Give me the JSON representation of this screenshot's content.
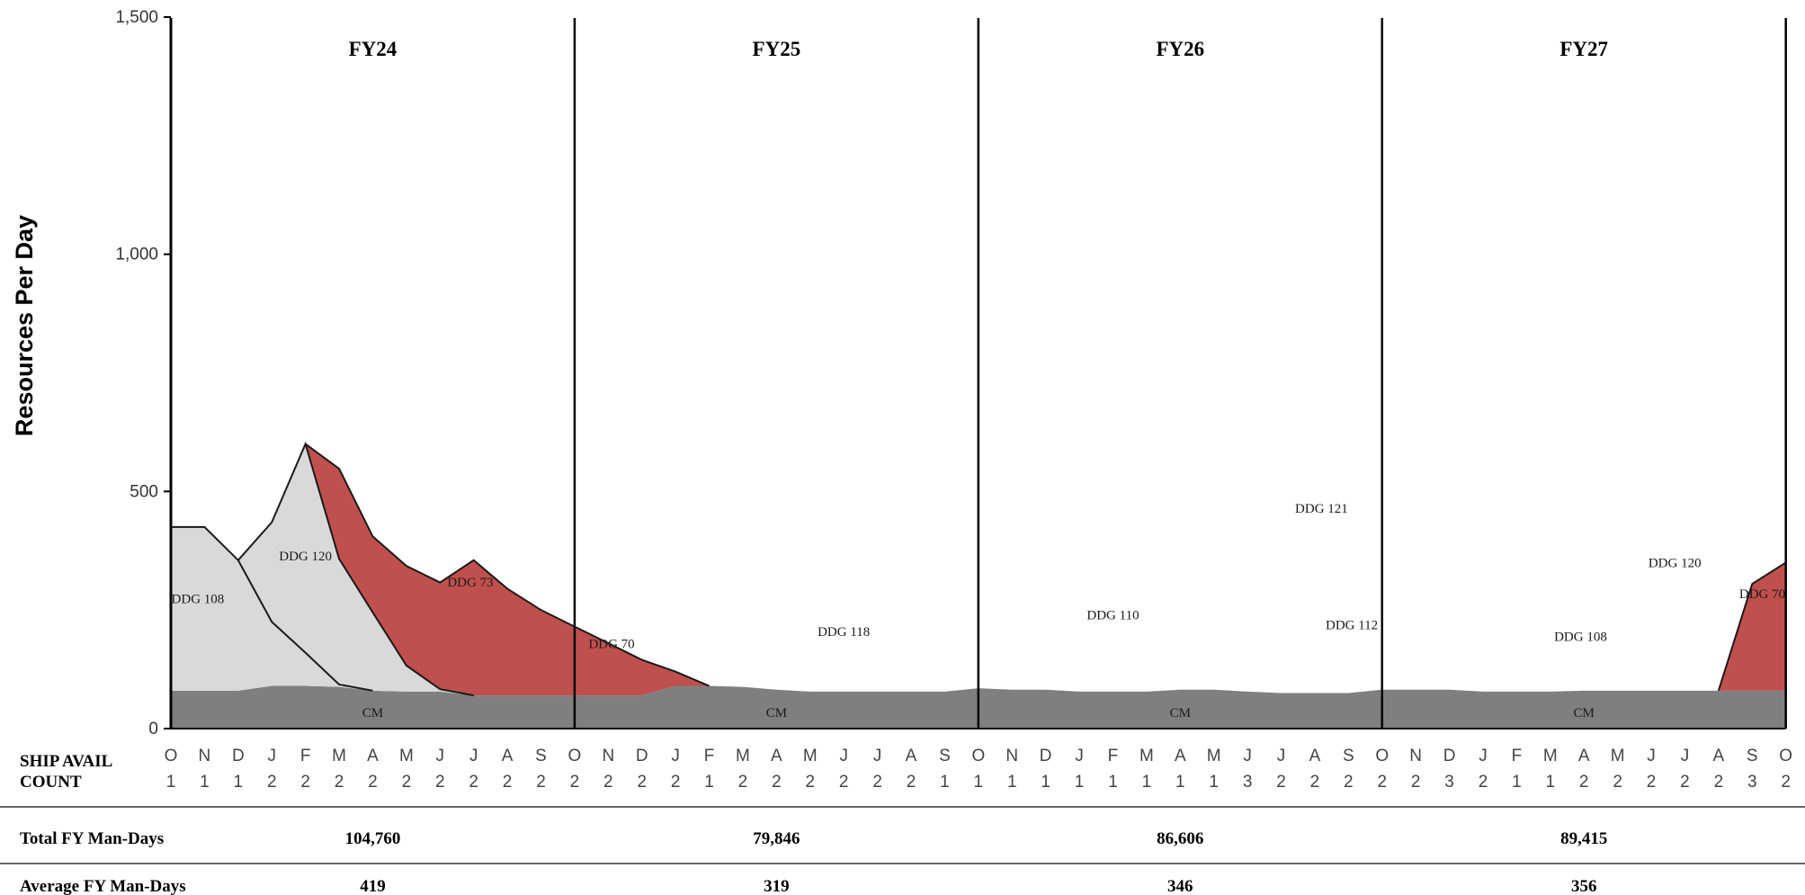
{
  "chart_data": {
    "type": "area",
    "ylabel": "Resources Per Day",
    "ylim": [
      0,
      1500
    ],
    "yticks": [
      {
        "value": 0,
        "label": "0"
      },
      {
        "value": 500,
        "label": "500"
      },
      {
        "value": 1000,
        "label": "1,000"
      },
      {
        "value": 1500,
        "label": "1,500"
      }
    ],
    "months": [
      "O",
      "N",
      "D",
      "J",
      "F",
      "M",
      "A",
      "M",
      "J",
      "J",
      "A",
      "S",
      "O",
      "N",
      "D",
      "J",
      "F",
      "M",
      "A",
      "M",
      "J",
      "J",
      "A",
      "S",
      "O",
      "N",
      "D",
      "J",
      "F",
      "M",
      "A",
      "M",
      "J",
      "J",
      "A",
      "S",
      "O",
      "N",
      "D",
      "J",
      "F",
      "M",
      "A",
      "M",
      "J",
      "J",
      "A",
      "S",
      "O"
    ],
    "ship_avail_count": [
      "1",
      "1",
      "1",
      "2",
      "2",
      "2",
      "2",
      "2",
      "2",
      "2",
      "2",
      "2",
      "2",
      "2",
      "2",
      "2",
      "1",
      "2",
      "2",
      "2",
      "2",
      "2",
      "2",
      "1",
      "1",
      "1",
      "1",
      "1",
      "1",
      "1",
      "1",
      "1",
      "3",
      "2",
      "2",
      "2",
      "2",
      "2",
      "3",
      "2",
      "1",
      "1",
      "2",
      "2",
      "2",
      "2",
      "2",
      "3",
      "2"
    ],
    "fiscal_years": [
      {
        "label": "FY24",
        "total": "104,760",
        "average": "419"
      },
      {
        "label": "FY25",
        "total": "79,846",
        "average": "319"
      },
      {
        "label": "FY26",
        "total": "86,606",
        "average": "346"
      },
      {
        "label": "FY27",
        "total": "89,415",
        "average": "356"
      }
    ],
    "series": [
      {
        "name": "DDG 108",
        "color": "#d9d9d9",
        "values": [
          345,
          345,
          275,
          135,
          70,
          5,
          0,
          0,
          0,
          0,
          0,
          0,
          0,
          0,
          0,
          0,
          0,
          0,
          0,
          0,
          0,
          0,
          0,
          0,
          0,
          0,
          0,
          0,
          0,
          0,
          0,
          0,
          0,
          0,
          0,
          0,
          0,
          0,
          0,
          0,
          0,
          0,
          0,
          0,
          0,
          0,
          0,
          0,
          0
        ]
      },
      {
        "name": "DDG 120",
        "color": "#d9d9d9",
        "values": [
          0,
          0,
          0,
          210,
          440,
          265,
          165,
          55,
          5,
          0,
          0,
          0,
          0,
          0,
          0,
          0,
          0,
          0,
          0,
          0,
          0,
          0,
          0,
          0,
          0,
          0,
          0,
          0,
          0,
          0,
          0,
          0,
          0,
          0,
          0,
          0,
          0,
          0,
          0,
          0,
          0,
          0,
          0,
          0,
          0,
          0,
          0,
          0,
          0
        ]
      },
      {
        "name": "DDG 73",
        "color": "#c0504d",
        "values": [
          0,
          0,
          0,
          0,
          0,
          190,
          160,
          210,
          225,
          285,
          225,
          180,
          145,
          110,
          75,
          30,
          0,
          0,
          0,
          0,
          0,
          0,
          0,
          0,
          0,
          0,
          0,
          0,
          0,
          0,
          0,
          0,
          0,
          0,
          0,
          0,
          0,
          0,
          0,
          0,
          0,
          0,
          0,
          0,
          0,
          0,
          0,
          0,
          0
        ]
      },
      {
        "name": "DDG 70",
        "color": "#c0504d",
        "values": [
          0,
          0,
          0,
          0,
          0,
          0,
          0,
          0,
          0,
          0,
          0,
          0,
          0,
          0,
          0,
          0,
          0,
          0,
          0,
          0,
          0,
          0,
          0,
          0,
          0,
          0,
          0,
          0,
          0,
          0,
          0,
          0,
          0,
          0,
          0,
          0,
          0,
          0,
          0,
          0,
          0,
          0,
          0,
          0,
          0,
          0,
          0,
          225,
          270
        ]
      },
      {
        "name": "DDG 118",
        "color": "#c0504d",
        "values": [
          0,
          0,
          0,
          0,
          0,
          0,
          0,
          0,
          0,
          0,
          0,
          0,
          0,
          0,
          0,
          0,
          0,
          0,
          0,
          0,
          0,
          0,
          0,
          0,
          0,
          0,
          0,
          0,
          0,
          0,
          0,
          0,
          0,
          0,
          0,
          0,
          0,
          0,
          0,
          0,
          0,
          0,
          0,
          0,
          0,
          0,
          0,
          0,
          0
        ]
      },
      {
        "name": "DDG 110",
        "color": "#c0504d",
        "values": [
          0,
          0,
          0,
          0,
          0,
          0,
          0,
          0,
          0,
          0,
          0,
          0,
          0,
          0,
          0,
          0,
          0,
          0,
          0,
          0,
          0,
          0,
          0,
          0,
          0,
          0,
          0,
          0,
          0,
          0,
          0,
          0,
          0,
          0,
          0,
          0,
          0,
          0,
          0,
          0,
          0,
          0,
          0,
          0,
          0,
          0,
          0,
          0,
          0
        ]
      },
      {
        "name": "DDG 121",
        "color": "#c0504d",
        "values": [
          0,
          0,
          0,
          0,
          0,
          0,
          0,
          0,
          0,
          0,
          0,
          0,
          0,
          0,
          0,
          0,
          0,
          0,
          0,
          0,
          0,
          0,
          0,
          0,
          0,
          0,
          0,
          0,
          0,
          0,
          0,
          0,
          0,
          0,
          0,
          0,
          0,
          0,
          0,
          0,
          0,
          0,
          0,
          0,
          0,
          0,
          0,
          0,
          0
        ]
      },
      {
        "name": "DDG 112",
        "color": "#c0504d",
        "values": [
          0,
          0,
          0,
          0,
          0,
          0,
          0,
          0,
          0,
          0,
          0,
          0,
          0,
          0,
          0,
          0,
          0,
          0,
          0,
          0,
          0,
          0,
          0,
          0,
          0,
          0,
          0,
          0,
          0,
          0,
          0,
          0,
          0,
          0,
          0,
          0,
          0,
          0,
          0,
          0,
          0,
          0,
          0,
          0,
          0,
          0,
          0,
          0,
          0
        ]
      },
      {
        "name": "CM",
        "color": "#7f7f7f",
        "values": [
          80,
          80,
          80,
          90,
          90,
          88,
          80,
          78,
          78,
          70,
          70,
          70,
          70,
          70,
          70,
          90,
          90,
          88,
          82,
          78,
          78,
          78,
          78,
          78,
          85,
          82,
          82,
          78,
          78,
          78,
          82,
          82,
          78,
          75,
          75,
          75,
          82,
          82,
          82,
          78,
          78,
          78,
          80,
          80,
          80,
          80,
          80,
          80,
          80
        ]
      }
    ],
    "area_labels": [
      {
        "name": "DDG 108",
        "x": 0.8,
        "y": 265
      },
      {
        "name": "DDG 120",
        "x": 4.0,
        "y": 355
      },
      {
        "name": "DDG 73",
        "x": 8.9,
        "y": 300
      },
      {
        "name": "DDG 70",
        "x": 13.1,
        "y": 170
      },
      {
        "name": "DDG 118",
        "x": 20.0,
        "y": 195
      },
      {
        "name": "DDG 110",
        "x": 28.0,
        "y": 230
      },
      {
        "name": "DDG 121",
        "x": 34.2,
        "y": 455
      },
      {
        "name": "DDG 112",
        "x": 35.1,
        "y": 210
      },
      {
        "name": "DDG 108",
        "x": 41.9,
        "y": 185
      },
      {
        "name": "DDG 120",
        "x": 44.7,
        "y": 340
      },
      {
        "name": "DDG 70",
        "x": 47.3,
        "y": 275
      },
      {
        "name": "CM",
        "x": 6.0,
        "y": 25
      },
      {
        "name": "CM",
        "x": 18.0,
        "y": 25
      },
      {
        "name": "CM",
        "x": 30.0,
        "y": 25
      },
      {
        "name": "CM",
        "x": 42.0,
        "y": 25
      }
    ],
    "table_labels": {
      "ship_avail_line1": "SHIP AVAIL",
      "ship_avail_line2": "COUNT",
      "total_row": "Total FY Man-Days",
      "average_row": "Average FY Man-Days"
    },
    "grid": false,
    "legend": "none"
  }
}
